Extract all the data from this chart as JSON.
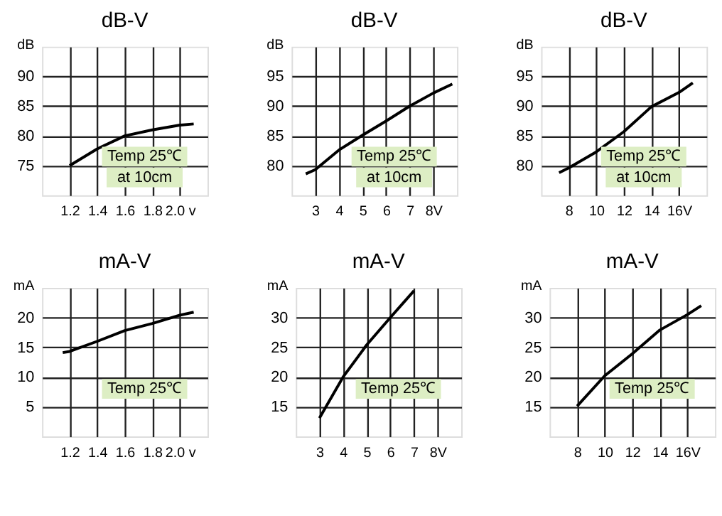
{
  "chart_data": [
    {
      "type": "line",
      "title": "dB-V",
      "ylabel": "dB",
      "color": "#000000",
      "grid": true,
      "marker": "none",
      "annotations": [
        "Temp 25℃",
        "at 10cm"
      ],
      "x": [
        1.2,
        1.4,
        1.6,
        1.8,
        2.0,
        2.1
      ],
      "values": [
        75,
        77.8,
        80,
        81,
        81.8,
        82
      ],
      "xlim": [
        1.0,
        2.2
      ],
      "ylim": [
        70,
        95
      ],
      "xticks": [
        1.2,
        1.4,
        1.6,
        1.8,
        {
          "value": 2.0,
          "label": "2.0 v"
        }
      ],
      "yticks": [
        75,
        80,
        85,
        90
      ]
    },
    {
      "type": "line",
      "title": "dB-V",
      "ylabel": "dB",
      "color": "#000000",
      "grid": true,
      "marker": "none",
      "annotations": [
        "Temp 25℃",
        "at 10cm"
      ],
      "x": [
        2.6,
        3,
        4,
        5,
        6,
        7,
        8,
        8.8
      ],
      "values": [
        78.6,
        79.3,
        82.6,
        85.1,
        87.5,
        90,
        92.2,
        93.7
      ],
      "xlim": [
        2,
        9
      ],
      "ylim": [
        75,
        100
      ],
      "xticks": [
        3,
        4,
        5,
        6,
        7,
        {
          "value": 8,
          "label": "8V"
        }
      ],
      "yticks": [
        80,
        85,
        90,
        95
      ]
    },
    {
      "type": "line",
      "title": "dB-V",
      "ylabel": "dB",
      "color": "#000000",
      "grid": true,
      "marker": "none",
      "annotations": [
        "Temp 25℃",
        "at 10cm"
      ],
      "x": [
        7.3,
        8,
        10,
        12,
        14,
        16,
        17
      ],
      "values": [
        78.8,
        79.6,
        82.3,
        85.7,
        89.9,
        92.3,
        93.9
      ],
      "xlim": [
        6,
        18
      ],
      "ylim": [
        75,
        100
      ],
      "xticks": [
        8,
        10,
        12,
        14,
        {
          "value": 16,
          "label": "16V"
        }
      ],
      "yticks": [
        80,
        85,
        90,
        95
      ]
    },
    {
      "type": "line",
      "title": "mA-V",
      "ylabel": "mA",
      "color": "#000000",
      "grid": true,
      "marker": "none",
      "annotations": [
        "Temp 25℃"
      ],
      "x": [
        1.15,
        1.2,
        1.4,
        1.6,
        1.8,
        2.0,
        2.1
      ],
      "values": [
        14.1,
        14.3,
        16,
        17.8,
        19,
        20.4,
        20.9
      ],
      "xlim": [
        1.0,
        2.2
      ],
      "ylim": [
        0,
        25
      ],
      "xticks": [
        1.2,
        1.4,
        1.6,
        1.8,
        {
          "value": 2.0,
          "label": "2.0 v"
        }
      ],
      "yticks": [
        5,
        10,
        15,
        20
      ]
    },
    {
      "type": "line",
      "title": "mA-V",
      "ylabel": "mA",
      "color": "#000000",
      "grid": true,
      "marker": "none",
      "annotations": [
        "Temp 25℃"
      ],
      "x": [
        3,
        4,
        5,
        6,
        7
      ],
      "values": [
        13.1,
        20,
        25.4,
        30,
        34.5
      ],
      "xlim": [
        2,
        9
      ],
      "ylim": [
        10,
        35
      ],
      "xticks": [
        3,
        4,
        5,
        6,
        7,
        {
          "value": 8,
          "label": "8V"
        }
      ],
      "yticks": [
        15,
        20,
        25,
        30
      ]
    },
    {
      "type": "line",
      "title": "mA-V",
      "ylabel": "mA",
      "color": "#000000",
      "grid": true,
      "marker": "none",
      "annotations": [
        "Temp 25℃"
      ],
      "x": [
        8,
        10,
        12,
        14,
        16,
        17
      ],
      "values": [
        15.1,
        20.2,
        23.9,
        27.9,
        30.5,
        32
      ],
      "xlim": [
        6,
        18
      ],
      "ylim": [
        10,
        35
      ],
      "xticks": [
        8,
        10,
        12,
        14,
        {
          "value": 16,
          "label": "16V"
        }
      ],
      "yticks": [
        15,
        20,
        25,
        30
      ]
    }
  ]
}
